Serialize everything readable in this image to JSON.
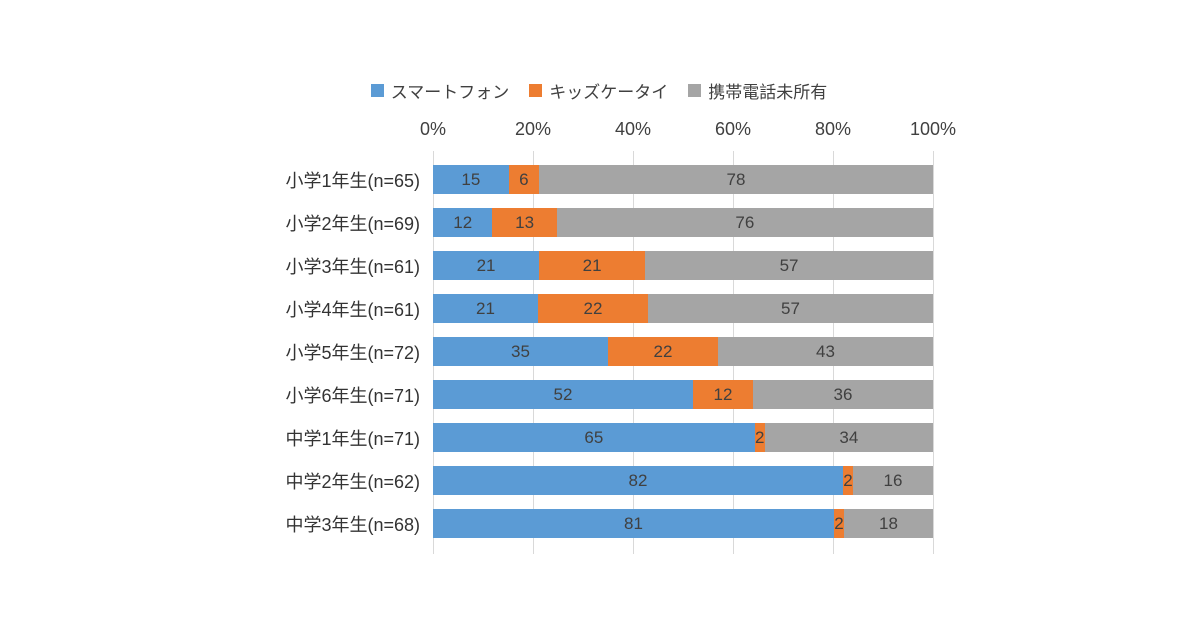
{
  "chart_data": {
    "type": "bar",
    "orientation": "horizontal",
    "stacked": true,
    "grid": true,
    "legend_position": "top",
    "xlim": [
      0,
      100
    ],
    "x_ticks": [
      "0%",
      "20%",
      "40%",
      "60%",
      "80%",
      "100%"
    ],
    "categories": [
      "小学1年生(n=65)",
      "小学2年生(n=69)",
      "小学3年生(n=61)",
      "小学4年生(n=61)",
      "小学5年生(n=72)",
      "小学6年生(n=71)",
      "中学1年生(n=71)",
      "中学2年生(n=62)",
      "中学3年生(n=68)"
    ],
    "series": [
      {
        "name": "スマートフォン",
        "color": "#5B9BD5",
        "values": [
          15,
          12,
          21,
          21,
          35,
          52,
          65,
          82,
          81
        ]
      },
      {
        "name": "キッズケータイ",
        "color": "#ED7D31",
        "values": [
          6,
          13,
          21,
          22,
          22,
          12,
          2,
          2,
          2
        ]
      },
      {
        "name": "携帯電話未所有",
        "color": "#A5A5A5",
        "values": [
          78,
          76,
          57,
          57,
          43,
          36,
          34,
          16,
          18
        ]
      }
    ],
    "colors": {
      "gridline": "#d9d9d9",
      "text": "#404040"
    }
  }
}
